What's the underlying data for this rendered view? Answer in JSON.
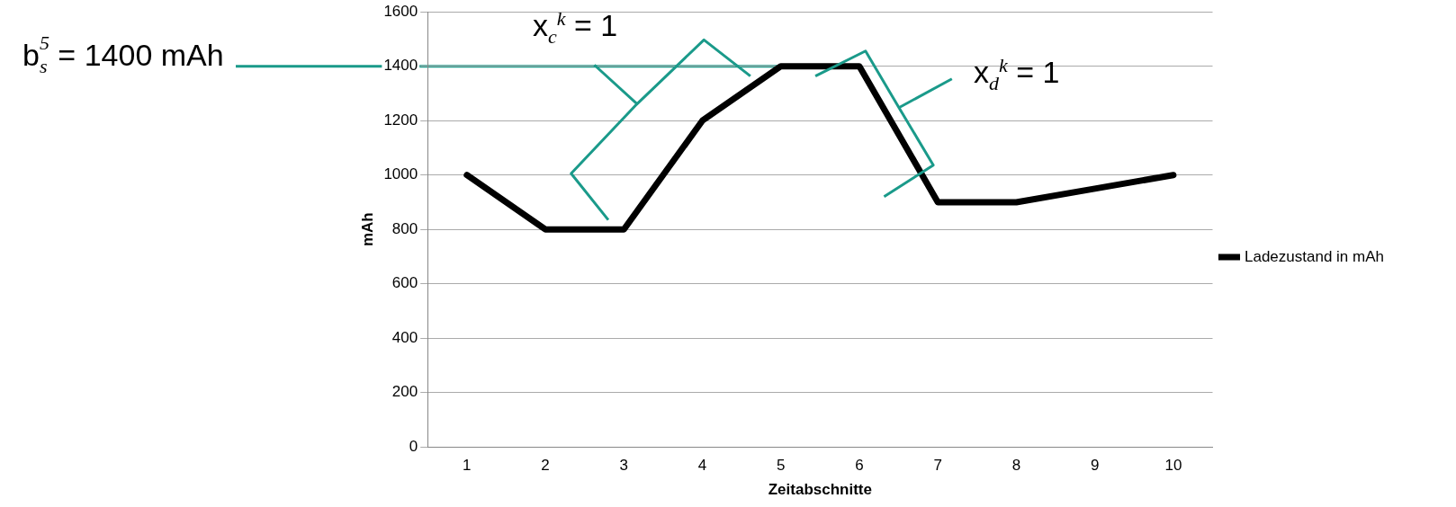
{
  "chart_data": {
    "type": "line",
    "xlabel": "Zeitabschnitte",
    "ylabel": "mAh",
    "categories": [
      "1",
      "2",
      "3",
      "4",
      "5",
      "6",
      "7",
      "8",
      "9",
      "10"
    ],
    "series": [
      {
        "name": "Ladezustand in mAh",
        "color": "#000000",
        "values": [
          1000,
          800,
          800,
          1200,
          1400,
          1400,
          900,
          900,
          950,
          1000
        ]
      }
    ],
    "ylim": [
      0,
      1600
    ],
    "yticks": [
      0,
      200,
      400,
      600,
      800,
      1000,
      1200,
      1400,
      1600
    ],
    "grid": "y",
    "legend": "right",
    "marker": "none",
    "line_style": "solid",
    "ref_lines": [
      {
        "axis": "y",
        "value": 1400,
        "label": "b$_{s}$$^{5}$ = 1400 mAh",
        "color": "#1a9a8a"
      }
    ],
    "annotations": [
      "x$_{c}$$^{k}$ = 1",
      "x$_{d}$$^{k}$ = 1"
    ]
  }
}
